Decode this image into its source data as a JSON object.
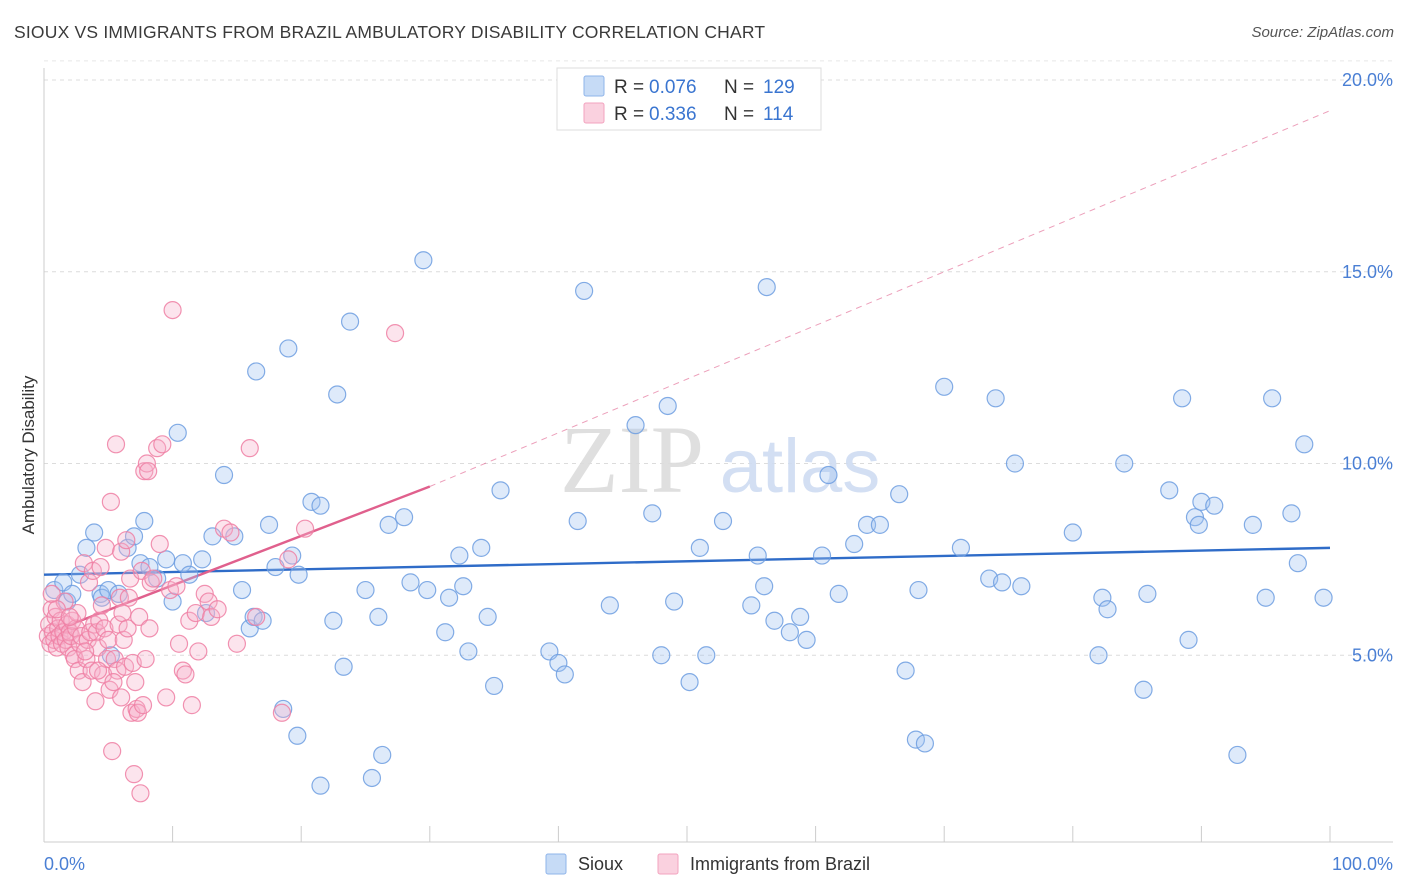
{
  "title": "SIOUX VS IMMIGRANTS FROM BRAZIL AMBULATORY DISABILITY CORRELATION CHART",
  "source": "Source: ZipAtlas.com",
  "watermark": {
    "zip": "ZIP",
    "atlas": "atlas"
  },
  "legend": {
    "rows": [
      {
        "r_label": "R =",
        "r_value": "0.076",
        "n_label": "N =",
        "n_value": "129",
        "color": "#8fb4ea"
      },
      {
        "r_label": "R =",
        "r_value": "0.336",
        "n_label": "N =",
        "n_value": "114",
        "color": "#f3a3bf"
      }
    ]
  },
  "bottom_legend": [
    {
      "label": "Sioux",
      "color": "#8fb4ea"
    },
    {
      "label": "Immigrants from Brazil",
      "color": "#f3a3bf"
    }
  ],
  "chart_data": {
    "type": "scatter",
    "ylabel": "Ambulatory Disability",
    "xlim": [
      0,
      100
    ],
    "ylim": [
      0,
      21
    ],
    "x_tick_labels": {
      "min": "0.0%",
      "max": "100.0%"
    },
    "y_ticks": [
      {
        "value": 5,
        "label": "5.0%"
      },
      {
        "value": 10,
        "label": "10.0%"
      },
      {
        "value": 15,
        "label": "15.0%"
      },
      {
        "value": 20,
        "label": "20.0%"
      }
    ],
    "grid": true,
    "series": [
      {
        "name": "Sioux",
        "color": "#6d9de0",
        "fill": "rgba(160,195,240,0.35)",
        "trend": {
          "x0": 0,
          "y0": 7.1,
          "x1": 100,
          "y1": 7.8,
          "color": "#2f6cc8"
        },
        "points": [
          [
            0.8,
            6.7
          ],
          [
            1.5,
            6.9
          ],
          [
            1.8,
            6.4
          ],
          [
            2.2,
            6.6
          ],
          [
            2.8,
            7.1
          ],
          [
            3.3,
            7.8
          ],
          [
            3.9,
            8.2
          ],
          [
            4.4,
            6.6
          ],
          [
            4.5,
            6.5
          ],
          [
            5,
            6.7
          ],
          [
            5.2,
            5
          ],
          [
            5.8,
            6.6
          ],
          [
            6.5,
            7.8
          ],
          [
            7,
            8.1
          ],
          [
            7.5,
            7.4
          ],
          [
            7.8,
            8.5
          ],
          [
            8.2,
            7.3
          ],
          [
            8.8,
            7
          ],
          [
            9.5,
            7.5
          ],
          [
            10,
            6.4
          ],
          [
            10.4,
            10.8
          ],
          [
            10.8,
            7.4
          ],
          [
            11.3,
            7.1
          ],
          [
            12.3,
            7.5
          ],
          [
            12.6,
            6.1
          ],
          [
            13.1,
            8.1
          ],
          [
            14,
            9.7
          ],
          [
            14.8,
            8.1
          ],
          [
            15.4,
            6.7
          ],
          [
            16,
            5.7
          ],
          [
            16.3,
            6
          ],
          [
            16.5,
            12.4
          ],
          [
            17,
            5.9
          ],
          [
            17.5,
            8.4
          ],
          [
            18,
            7.3
          ],
          [
            18.6,
            3.6
          ],
          [
            19,
            13
          ],
          [
            19.3,
            7.6
          ],
          [
            19.8,
            7.1
          ],
          [
            19.7,
            2.9
          ],
          [
            20.8,
            9
          ],
          [
            21.5,
            8.9
          ],
          [
            21.5,
            1.6
          ],
          [
            22.5,
            5.9
          ],
          [
            22.8,
            11.8
          ],
          [
            23.3,
            4.7
          ],
          [
            23.8,
            13.7
          ],
          [
            25,
            6.7
          ],
          [
            25.5,
            1.8
          ],
          [
            26,
            6
          ],
          [
            26.3,
            2.4
          ],
          [
            26.8,
            8.4
          ],
          [
            28,
            8.6
          ],
          [
            28.5,
            6.9
          ],
          [
            29.5,
            15.3
          ],
          [
            29.8,
            6.7
          ],
          [
            31.2,
            5.6
          ],
          [
            31.5,
            6.5
          ],
          [
            32.3,
            7.6
          ],
          [
            32.6,
            6.8
          ],
          [
            33,
            5.1
          ],
          [
            34,
            7.8
          ],
          [
            34.5,
            6
          ],
          [
            35,
            4.2
          ],
          [
            35.5,
            9.3
          ],
          [
            39.3,
            5.1
          ],
          [
            40,
            4.8
          ],
          [
            40.5,
            4.5
          ],
          [
            41.5,
            8.5
          ],
          [
            42,
            14.5
          ],
          [
            44,
            6.3
          ],
          [
            46,
            11
          ],
          [
            47.3,
            8.7
          ],
          [
            48,
            5
          ],
          [
            48.5,
            11.5
          ],
          [
            49,
            6.4
          ],
          [
            50.2,
            4.3
          ],
          [
            51,
            7.8
          ],
          [
            51.5,
            5
          ],
          [
            52.8,
            8.5
          ],
          [
            55,
            6.3
          ],
          [
            55.5,
            7.6
          ],
          [
            56,
            6.8
          ],
          [
            56.2,
            14.6
          ],
          [
            56.8,
            5.9
          ],
          [
            58,
            5.6
          ],
          [
            58.8,
            6
          ],
          [
            59.3,
            5.4
          ],
          [
            60.5,
            7.6
          ],
          [
            61,
            9.7
          ],
          [
            61.8,
            6.6
          ],
          [
            63,
            7.9
          ],
          [
            64,
            8.4
          ],
          [
            65,
            8.4
          ],
          [
            66.5,
            9.2
          ],
          [
            67,
            4.6
          ],
          [
            67.8,
            2.8
          ],
          [
            68,
            6.7
          ],
          [
            68.5,
            2.7
          ],
          [
            70,
            12
          ],
          [
            71.3,
            7.8
          ],
          [
            73.5,
            7
          ],
          [
            74,
            11.7
          ],
          [
            74.5,
            6.9
          ],
          [
            75.5,
            10
          ],
          [
            76,
            6.8
          ],
          [
            80,
            8.2
          ],
          [
            82,
            5
          ],
          [
            82.3,
            6.5
          ],
          [
            82.7,
            6.2
          ],
          [
            84,
            10
          ],
          [
            85.5,
            4.1
          ],
          [
            85.8,
            6.6
          ],
          [
            87.5,
            9.3
          ],
          [
            88.5,
            11.7
          ],
          [
            89,
            5.4
          ],
          [
            89.5,
            8.6
          ],
          [
            89.8,
            8.4
          ],
          [
            90,
            9
          ],
          [
            91,
            8.9
          ],
          [
            92.8,
            2.4
          ],
          [
            94,
            8.4
          ],
          [
            95,
            6.5
          ],
          [
            95.5,
            11.7
          ],
          [
            97,
            8.7
          ],
          [
            97.5,
            7.4
          ],
          [
            98,
            10.5
          ],
          [
            99.5,
            6.5
          ]
        ]
      },
      {
        "name": "Immigrants from Brazil",
        "color": "#ef7fa3",
        "fill": "rgba(246,178,202,0.35)",
        "trend": {
          "x0": 0.5,
          "y0": 5.6,
          "x1": 30,
          "y1": 9.4,
          "color": "#e0608d",
          "extend_to": {
            "x": 100,
            "y": 19.2
          }
        },
        "points": [
          [
            0.3,
            5.5
          ],
          [
            0.4,
            5.8
          ],
          [
            0.5,
            5.3
          ],
          [
            0.6,
            6.2
          ],
          [
            0.7,
            5.6
          ],
          [
            0.8,
            5.4
          ],
          [
            0.9,
            6
          ],
          [
            1,
            5.2
          ],
          [
            1.1,
            5.7
          ],
          [
            1.2,
            5.5
          ],
          [
            1.3,
            5.9
          ],
          [
            1.4,
            5.3
          ],
          [
            1.5,
            5.6
          ],
          [
            1.6,
            6.4
          ],
          [
            1.7,
            5.4
          ],
          [
            1.8,
            5.8
          ],
          [
            1.9,
            5.2
          ],
          [
            2,
            5.6
          ],
          [
            2.1,
            5.5
          ],
          [
            2.2,
            5.9
          ],
          [
            2.3,
            5
          ],
          [
            2.4,
            4.9
          ],
          [
            2.5,
            5.7
          ],
          [
            2.6,
            6.1
          ],
          [
            2.7,
            4.6
          ],
          [
            2.8,
            5.3
          ],
          [
            2.9,
            5.5
          ],
          [
            3,
            4.3
          ],
          [
            3.1,
            7.4
          ],
          [
            3.3,
            4.9
          ],
          [
            3.4,
            5.4
          ],
          [
            3.5,
            6.9
          ],
          [
            3.6,
            5.6
          ],
          [
            3.7,
            4.6
          ],
          [
            3.8,
            7.2
          ],
          [
            3.9,
            5.8
          ],
          [
            4,
            3.8
          ],
          [
            4.1,
            5.6
          ],
          [
            4.2,
            5.2
          ],
          [
            4.3,
            5.9
          ],
          [
            4.4,
            7.3
          ],
          [
            4.5,
            6.3
          ],
          [
            4.6,
            4.5
          ],
          [
            4.7,
            5.7
          ],
          [
            4.8,
            7.8
          ],
          [
            4.9,
            4.9
          ],
          [
            5,
            5.4
          ],
          [
            5.1,
            4.1
          ],
          [
            5.2,
            9
          ],
          [
            5.3,
            2.5
          ],
          [
            5.5,
            4.9
          ],
          [
            5.6,
            10.5
          ],
          [
            5.7,
            4.6
          ],
          [
            5.8,
            5.8
          ],
          [
            5.9,
            6.5
          ],
          [
            6,
            7.7
          ],
          [
            6.1,
            6.1
          ],
          [
            6.2,
            5.4
          ],
          [
            6.3,
            4.7
          ],
          [
            6.4,
            8
          ],
          [
            6.5,
            5.7
          ],
          [
            6.6,
            6.5
          ],
          [
            6.7,
            7
          ],
          [
            6.8,
            3.5
          ],
          [
            6.9,
            4.8
          ],
          [
            7,
            1.9
          ],
          [
            7.1,
            4.3
          ],
          [
            7.2,
            3.6
          ],
          [
            7.3,
            3.5
          ],
          [
            7.4,
            6
          ],
          [
            7.5,
            1.4
          ],
          [
            7.6,
            7.2
          ],
          [
            7.7,
            3.7
          ],
          [
            7.8,
            9.8
          ],
          [
            7.9,
            4.9
          ],
          [
            8,
            10
          ],
          [
            8.1,
            9.8
          ],
          [
            8.2,
            5.7
          ],
          [
            8.3,
            6.9
          ],
          [
            8.5,
            7
          ],
          [
            8.8,
            10.4
          ],
          [
            9,
            7.9
          ],
          [
            9.2,
            10.5
          ],
          [
            9.5,
            3.9
          ],
          [
            9.8,
            6.7
          ],
          [
            10,
            14
          ],
          [
            10.3,
            6.8
          ],
          [
            10.5,
            5.3
          ],
          [
            10.8,
            4.6
          ],
          [
            11,
            4.5
          ],
          [
            11.3,
            5.9
          ],
          [
            11.5,
            3.7
          ],
          [
            11.8,
            6.1
          ],
          [
            12,
            5.1
          ],
          [
            12.5,
            6.6
          ],
          [
            12.8,
            6.4
          ],
          [
            13,
            6
          ],
          [
            13.5,
            6.2
          ],
          [
            14,
            8.3
          ],
          [
            14.5,
            8.2
          ],
          [
            15,
            5.3
          ],
          [
            16,
            10.4
          ],
          [
            16.5,
            6
          ],
          [
            18.5,
            3.5
          ],
          [
            19,
            7.5
          ],
          [
            20.3,
            8.3
          ],
          [
            27.3,
            13.4
          ],
          [
            0.6,
            6.6
          ],
          [
            1.0,
            6.2
          ],
          [
            2.0,
            6.0
          ],
          [
            3.2,
            5.1
          ],
          [
            4.2,
            4.6
          ],
          [
            5.4,
            4.3
          ],
          [
            6.0,
            3.9
          ]
        ]
      }
    ]
  }
}
